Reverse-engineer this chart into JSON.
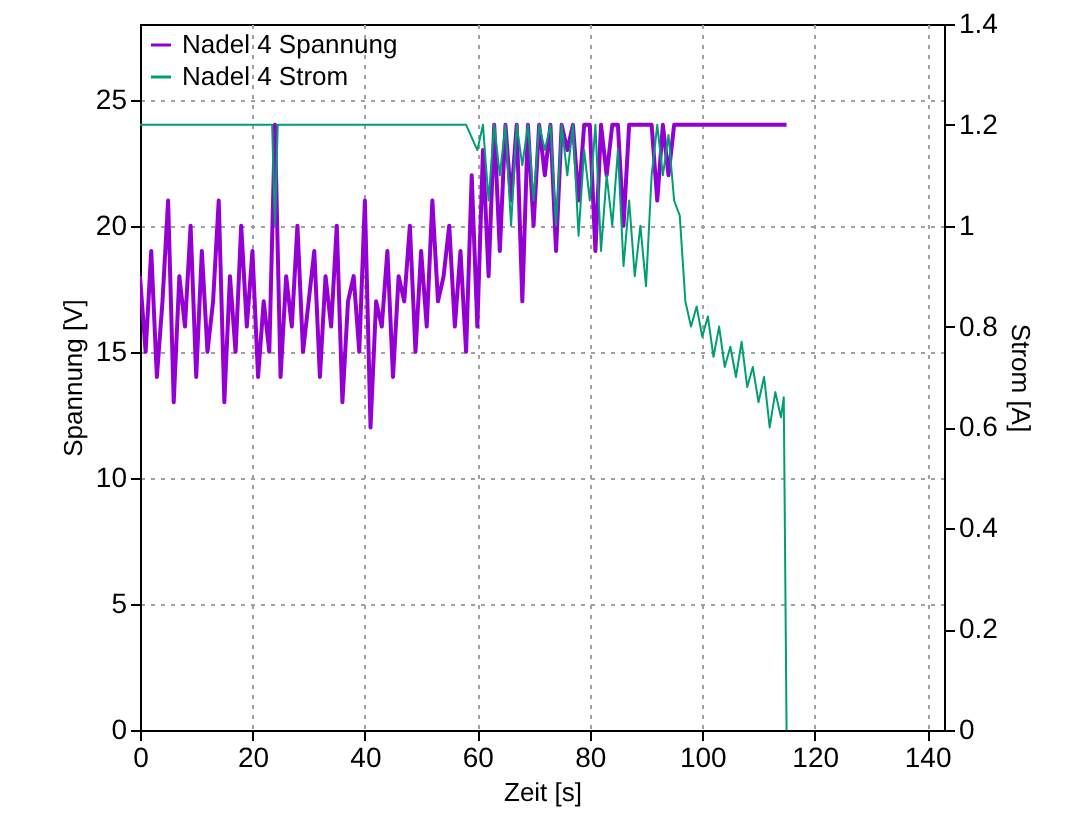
{
  "chart_data": {
    "type": "line",
    "xlabel": "Zeit [s]",
    "ylabel": "Spannung [V]",
    "y2label": "Strom [A]",
    "xlim": [
      0,
      143
    ],
    "xticks": [
      0,
      20,
      40,
      60,
      80,
      100,
      120,
      140
    ],
    "ylim": [
      0,
      28
    ],
    "yticks": [
      0,
      5,
      10,
      15,
      20,
      25
    ],
    "y2lim": [
      0,
      1.4
    ],
    "y2ticks": [
      0,
      0.2,
      0.4,
      0.6,
      0.8,
      1,
      1.2,
      1.4
    ],
    "grid": true,
    "legend": "top left",
    "line_style": "solid",
    "marker": "none",
    "series": [
      {
        "name": "Nadel 4 Spannung",
        "color": "#9400d3",
        "x": [
          0,
          1,
          2,
          3,
          4,
          5,
          6,
          7,
          8,
          9,
          10,
          11,
          12,
          13,
          14,
          15,
          16,
          17,
          18,
          19,
          20,
          21,
          22,
          23,
          24,
          25,
          26,
          27,
          28,
          29,
          30,
          31,
          32,
          33,
          34,
          35,
          36,
          37,
          38,
          39,
          40,
          41,
          42,
          43,
          44,
          45,
          46,
          47,
          48,
          49,
          50,
          51,
          52,
          53,
          54,
          55,
          56,
          57,
          58,
          59,
          60,
          61,
          62,
          63,
          64,
          65,
          66,
          67,
          68,
          69,
          70,
          71,
          72,
          73,
          74,
          75,
          76,
          77,
          78,
          79,
          80,
          81,
          82,
          83,
          84,
          85,
          86,
          87,
          88,
          89,
          90,
          91,
          92,
          93,
          94,
          95,
          115
        ],
        "values": [
          18,
          15,
          19,
          14,
          17,
          21,
          13,
          18,
          16,
          20,
          14,
          19,
          15,
          17,
          21,
          13,
          18,
          15,
          20,
          16,
          19,
          14,
          17,
          15,
          24,
          14,
          18,
          16,
          20,
          15,
          17,
          19,
          14,
          18,
          16,
          20,
          13,
          17,
          18,
          15,
          21,
          12,
          17,
          16,
          19,
          14,
          18,
          17,
          20,
          15,
          19,
          16,
          21,
          17,
          18,
          20,
          16,
          19,
          15,
          22,
          16,
          23,
          18,
          24,
          19,
          24,
          21,
          24,
          17,
          24,
          20,
          24,
          22,
          24,
          19,
          24,
          23,
          24,
          21,
          24,
          24,
          19,
          24,
          22,
          24,
          24,
          20,
          24,
          24,
          24,
          24,
          24,
          21,
          24,
          22,
          24,
          24
        ]
      },
      {
        "name": "Nadel 4 Strom",
        "color": "#009e73",
        "axis": "y2",
        "x": [
          0,
          23.5,
          24,
          24.5,
          58,
          60,
          61,
          62,
          63,
          64,
          65,
          66,
          67,
          68,
          69,
          70,
          71,
          72,
          73,
          74,
          75,
          76,
          77,
          78,
          79,
          80,
          81,
          82,
          83,
          84,
          85,
          86,
          87,
          88,
          89,
          90,
          91,
          92,
          93,
          94,
          95,
          96,
          97,
          98,
          99,
          100,
          101,
          102,
          103,
          104,
          105,
          106,
          107,
          108,
          109,
          110,
          111,
          112,
          113,
          114,
          114.5,
          115
        ],
        "values": [
          1.2,
          1.2,
          1.0,
          1.2,
          1.2,
          1.15,
          1.2,
          1.05,
          1.2,
          1.1,
          1.2,
          1.0,
          1.2,
          1.12,
          1.2,
          1.05,
          1.2,
          1.15,
          1.2,
          1.0,
          1.2,
          1.1,
          1.2,
          0.98,
          1.15,
          1.05,
          1.2,
          0.95,
          1.1,
          1.0,
          1.15,
          0.92,
          1.05,
          0.9,
          1.0,
          0.88,
          1.1,
          1.2,
          1.1,
          1.18,
          1.05,
          1.02,
          0.85,
          0.8,
          0.84,
          0.78,
          0.82,
          0.74,
          0.8,
          0.72,
          0.76,
          0.7,
          0.77,
          0.68,
          0.72,
          0.65,
          0.7,
          0.6,
          0.67,
          0.62,
          0.66,
          0
        ]
      }
    ]
  }
}
